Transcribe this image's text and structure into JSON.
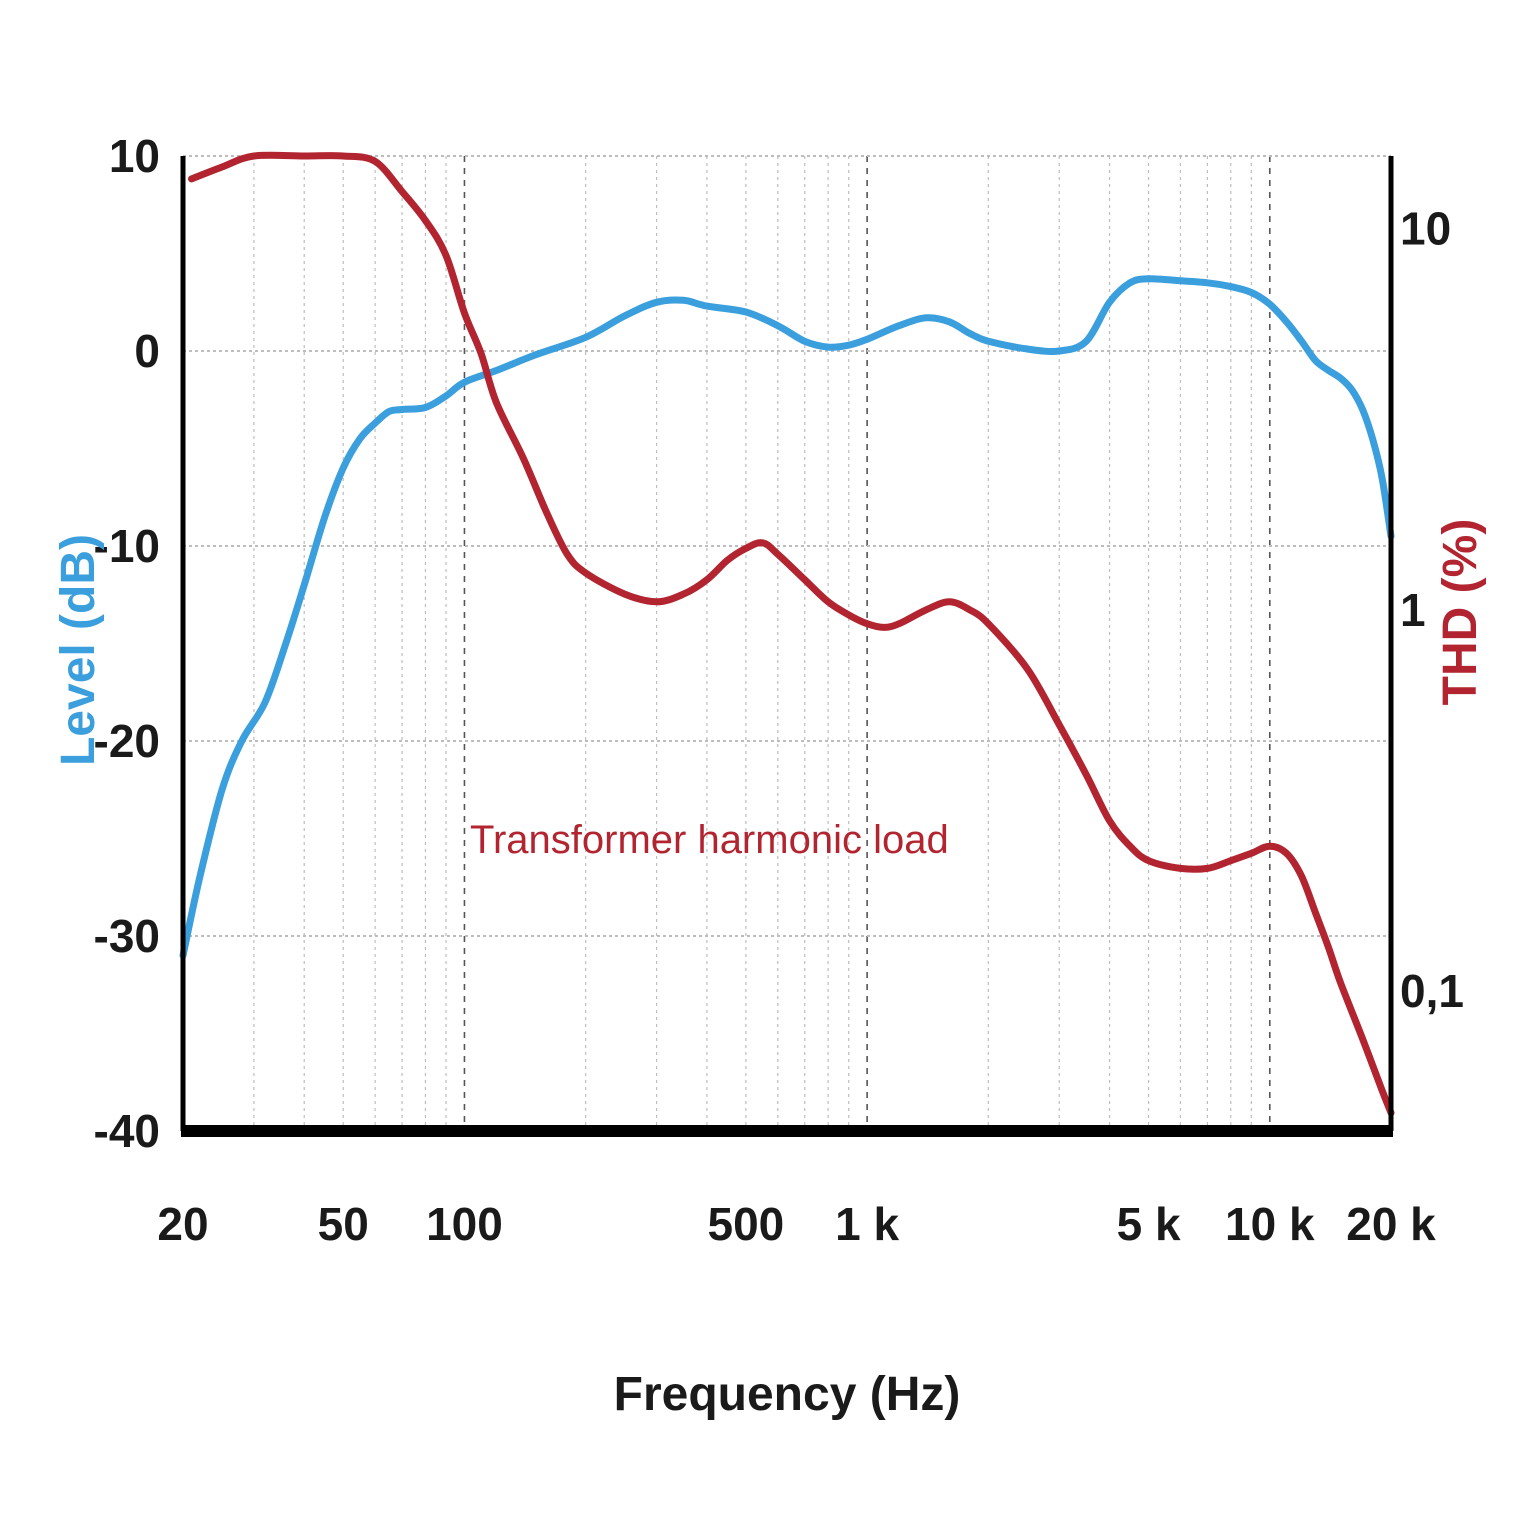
{
  "chart_data": {
    "type": "line",
    "xlabel": "Frequency (Hz)",
    "ylabel_left": "Level (dB)",
    "ylabel_right": "THD (%)",
    "annotation": "Transformer harmonic load",
    "x_scale": "log",
    "xlim": [
      20,
      20000
    ],
    "x_ticks": [
      {
        "value": 20,
        "label": "20"
      },
      {
        "value": 50,
        "label": "50"
      },
      {
        "value": 100,
        "label": "100"
      },
      {
        "value": 500,
        "label": "500"
      },
      {
        "value": 1000,
        "label": "1 k"
      },
      {
        "value": 5000,
        "label": "5 k"
      },
      {
        "value": 10000,
        "label": "10 k"
      },
      {
        "value": 20000,
        "label": "20 k"
      }
    ],
    "ylim_left": [
      -40,
      10
    ],
    "y_ticks_left": [
      {
        "value": 10,
        "label": "10"
      },
      {
        "value": 0,
        "label": "0"
      },
      {
        "value": -10,
        "label": "-10"
      },
      {
        "value": -20,
        "label": "-20"
      },
      {
        "value": -30,
        "label": "-30"
      },
      {
        "value": -40,
        "label": "-40"
      }
    ],
    "y_scale_right": "log",
    "ylim_right": [
      0.043,
      15.5
    ],
    "y_ticks_right": [
      {
        "value": 10,
        "label": "10"
      },
      {
        "value": 1,
        "label": "1"
      },
      {
        "value": 0.1,
        "label": "0,1"
      }
    ],
    "grid": true,
    "series": [
      {
        "axis": "left",
        "color": "#3a9fdc",
        "points": [
          [
            20,
            -31.0
          ],
          [
            22,
            -27.0
          ],
          [
            25,
            -22.5
          ],
          [
            28,
            -20.0
          ],
          [
            32,
            -18.0
          ],
          [
            36,
            -15.0
          ],
          [
            40,
            -12.0
          ],
          [
            45,
            -8.5
          ],
          [
            50,
            -6.0
          ],
          [
            55,
            -4.5
          ],
          [
            60,
            -3.7
          ],
          [
            65,
            -3.1
          ],
          [
            70,
            -3.0
          ],
          [
            80,
            -2.9
          ],
          [
            90,
            -2.3
          ],
          [
            100,
            -1.6
          ],
          [
            120,
            -1.0
          ],
          [
            150,
            -0.2
          ],
          [
            200,
            0.7
          ],
          [
            250,
            1.8
          ],
          [
            300,
            2.5
          ],
          [
            350,
            2.6
          ],
          [
            400,
            2.3
          ],
          [
            500,
            2.0
          ],
          [
            600,
            1.3
          ],
          [
            700,
            0.5
          ],
          [
            800,
            0.2
          ],
          [
            900,
            0.3
          ],
          [
            1000,
            0.6
          ],
          [
            1200,
            1.3
          ],
          [
            1400,
            1.7
          ],
          [
            1600,
            1.5
          ],
          [
            1800,
            0.9
          ],
          [
            2000,
            0.5
          ],
          [
            2500,
            0.1
          ],
          [
            3000,
            0.0
          ],
          [
            3500,
            0.5
          ],
          [
            4000,
            2.5
          ],
          [
            4500,
            3.5
          ],
          [
            5000,
            3.7
          ],
          [
            6000,
            3.6
          ],
          [
            7000,
            3.5
          ],
          [
            8000,
            3.3
          ],
          [
            9000,
            3.0
          ],
          [
            10000,
            2.4
          ],
          [
            11000,
            1.5
          ],
          [
            12000,
            0.5
          ],
          [
            13000,
            -0.5
          ],
          [
            14000,
            -1.0
          ],
          [
            15000,
            -1.4
          ],
          [
            16000,
            -2.0
          ],
          [
            17000,
            -3.0
          ],
          [
            18000,
            -4.5
          ],
          [
            19000,
            -6.5
          ],
          [
            20000,
            -9.5
          ]
        ]
      },
      {
        "axis": "right",
        "color": "#b22530",
        "points": [
          [
            21,
            13.5
          ],
          [
            25,
            14.5
          ],
          [
            30,
            15.5
          ],
          [
            40,
            15.5
          ],
          [
            50,
            15.5
          ],
          [
            60,
            15.0
          ],
          [
            70,
            12.5
          ],
          [
            80,
            10.5
          ],
          [
            90,
            8.5
          ],
          [
            100,
            6.0
          ],
          [
            110,
            4.7
          ],
          [
            120,
            3.5
          ],
          [
            140,
            2.5
          ],
          [
            160,
            1.8
          ],
          [
            180,
            1.4
          ],
          [
            200,
            1.25
          ],
          [
            250,
            1.1
          ],
          [
            300,
            1.05
          ],
          [
            350,
            1.1
          ],
          [
            400,
            1.2
          ],
          [
            450,
            1.35
          ],
          [
            500,
            1.45
          ],
          [
            550,
            1.5
          ],
          [
            600,
            1.4
          ],
          [
            700,
            1.2
          ],
          [
            800,
            1.05
          ],
          [
            900,
            0.97
          ],
          [
            1000,
            0.92
          ],
          [
            1100,
            0.9
          ],
          [
            1200,
            0.92
          ],
          [
            1400,
            1.0
          ],
          [
            1600,
            1.05
          ],
          [
            1800,
            1.0
          ],
          [
            2000,
            0.92
          ],
          [
            2500,
            0.7
          ],
          [
            3000,
            0.5
          ],
          [
            3500,
            0.37
          ],
          [
            4000,
            0.28
          ],
          [
            4500,
            0.24
          ],
          [
            5000,
            0.22
          ],
          [
            6000,
            0.21
          ],
          [
            7000,
            0.21
          ],
          [
            8000,
            0.22
          ],
          [
            9000,
            0.23
          ],
          [
            10000,
            0.24
          ],
          [
            11000,
            0.23
          ],
          [
            12000,
            0.2
          ],
          [
            13000,
            0.16
          ],
          [
            14000,
            0.13
          ],
          [
            15000,
            0.105
          ],
          [
            17000,
            0.075
          ],
          [
            19000,
            0.055
          ],
          [
            20000,
            0.048
          ]
        ]
      }
    ]
  },
  "colors": {
    "level": "#3a9fdc",
    "thd": "#b22530",
    "axis": "#000000",
    "grid": "#bdbdbd",
    "grid_major": "#555555"
  }
}
